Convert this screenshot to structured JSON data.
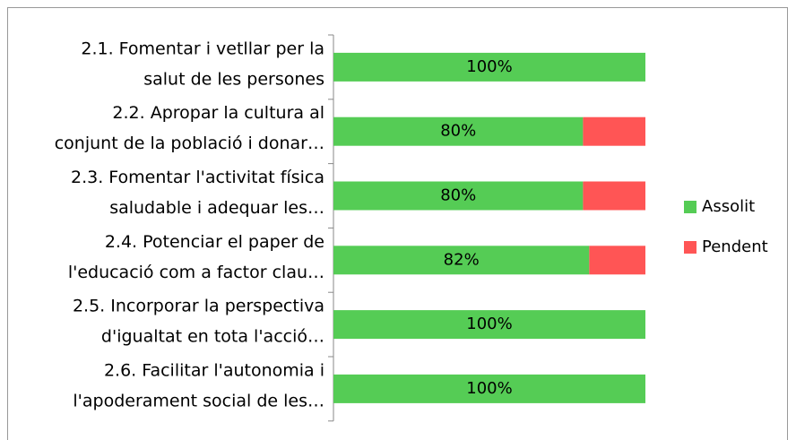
{
  "chart_data": {
    "type": "stacked_barh",
    "categories": [
      [
        "2.1. Fomentar i vetllar per la",
        "salut de les persones"
      ],
      [
        "2.2. Apropar la cultura al",
        "conjunt de la població i donar…"
      ],
      [
        "2.3. Fomentar l'activitat física",
        "saludable i adequar les…"
      ],
      [
        "2.4. Potenciar el paper de",
        "l'educació com a factor clau…"
      ],
      [
        "2.5. Incorporar la perspectiva",
        "d'igualtat en tota l'acció…"
      ],
      [
        "2.6. Facilitar l'autonomia i",
        "l'apoderament social de les…"
      ]
    ],
    "series": [
      {
        "name": "Assolit",
        "color": "#55cc55",
        "values": [
          100,
          80,
          80,
          82,
          100,
          100
        ],
        "value_labels": [
          "100%",
          "80%",
          "80%",
          "82%",
          "100%",
          "100%"
        ]
      },
      {
        "name": "Pendent",
        "color": "#ff5555",
        "values": [
          0,
          20,
          20,
          18,
          0,
          0
        ]
      }
    ],
    "xlim": [
      0,
      100
    ],
    "legend": "right"
  }
}
